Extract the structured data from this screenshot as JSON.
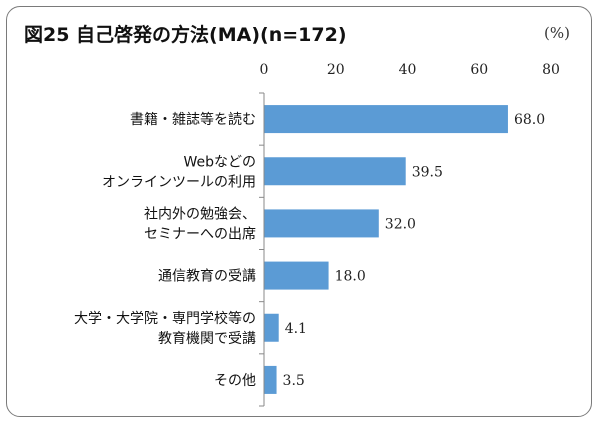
{
  "title": "図25 自己啓発の方法(MA)(n=172)",
  "unit_label": "(%)",
  "colors": {
    "bar": "#5b9bd5",
    "axis": "#888888"
  },
  "chart_data": {
    "type": "bar",
    "orientation": "horizontal",
    "categories": [
      [
        "書籍・雑誌等を読む"
      ],
      [
        "Webなどの",
        "オンラインツールの利用"
      ],
      [
        "社内外の勉強会、",
        "セミナーへの出席"
      ],
      [
        "通信教育の受講"
      ],
      [
        "大学・大学院・専門学校等の",
        "教育機関で受講"
      ],
      [
        "その他"
      ]
    ],
    "values": [
      68.0,
      39.5,
      32.0,
      18.0,
      4.1,
      3.5
    ],
    "value_labels": [
      "68.0",
      "39.5",
      "32.0",
      "18.0",
      "4.1",
      "3.5"
    ],
    "xlim": [
      0,
      80
    ],
    "xticks": [
      "0",
      "20",
      "40",
      "60",
      "80"
    ],
    "x_axis_position": "top",
    "grid": false
  }
}
